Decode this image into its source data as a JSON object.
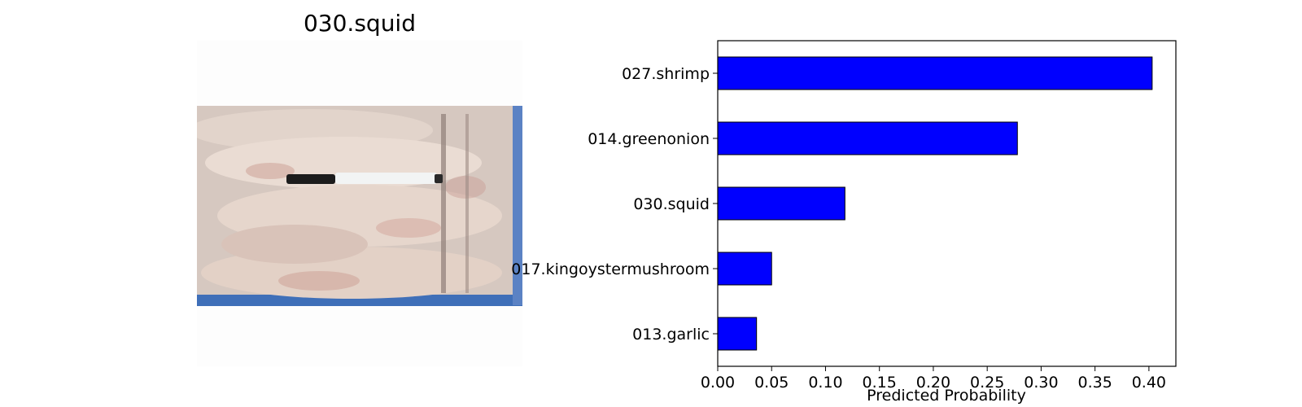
{
  "image_panel": {
    "title": "030.squid",
    "photo_description": "squid"
  },
  "chart_data": {
    "type": "bar",
    "orientation": "horizontal",
    "categories": [
      "027.shrimp",
      "014.greenonion",
      "030.squid",
      "017.kingoystermushroom",
      "013.garlic"
    ],
    "values": [
      0.403,
      0.278,
      0.118,
      0.05,
      0.036
    ],
    "xlabel": "Predicted Probability",
    "ylabel": "",
    "xlim": [
      0,
      0.425
    ],
    "xticks": [
      "0.00",
      "0.05",
      "0.10",
      "0.15",
      "0.20",
      "0.25",
      "0.30",
      "0.35",
      "0.40"
    ],
    "grid": false,
    "bar_color": "#0000ff",
    "bar_edge_color": "#000000"
  }
}
